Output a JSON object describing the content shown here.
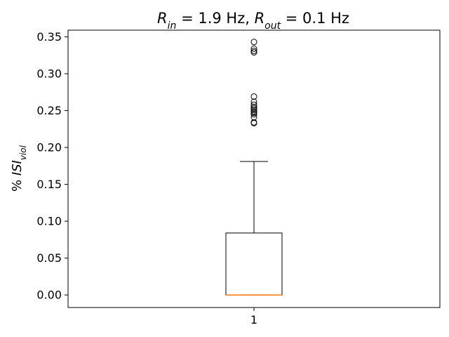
{
  "chart_data": {
    "type": "box",
    "title": {
      "parts": [
        {
          "text": "R",
          "style": "italic"
        },
        {
          "text": "in",
          "style": "italic-sub"
        },
        {
          "text": " = 1.9 Hz, ",
          "style": "normal"
        },
        {
          "text": "R",
          "style": "italic"
        },
        {
          "text": "out",
          "style": "italic-sub"
        },
        {
          "text": " = 0.1 Hz",
          "style": "normal"
        }
      ]
    },
    "ylabel": {
      "parts": [
        {
          "text": "% ",
          "style": "normal"
        },
        {
          "text": "ISI",
          "style": "italic"
        },
        {
          "text": "viol",
          "style": "italic-sub"
        }
      ]
    },
    "categories": [
      "1"
    ],
    "ylim": [
      -0.017,
      0.359
    ],
    "yticks": [
      "0.00",
      "0.05",
      "0.10",
      "0.15",
      "0.20",
      "0.25",
      "0.30",
      "0.35"
    ],
    "box": {
      "whisker_low": 0.0,
      "q1": 0.0,
      "median": 0.0,
      "q3": 0.084,
      "whisker_high": 0.181
    },
    "outliers": [
      0.233,
      0.234,
      0.241,
      0.245,
      0.247,
      0.249,
      0.251,
      0.253,
      0.255,
      0.258,
      0.262,
      0.269,
      0.329,
      0.331,
      0.334,
      0.343
    ],
    "colors": {
      "box": "#000000",
      "median": "#ff7f0e"
    },
    "grid": false
  }
}
